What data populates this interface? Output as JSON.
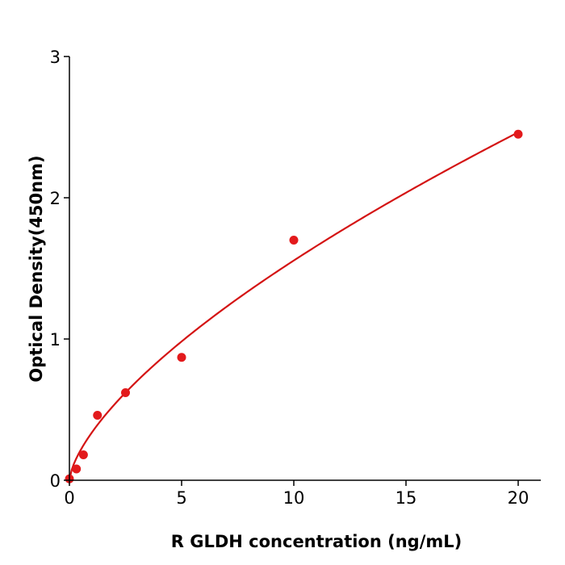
{
  "chart_data": {
    "type": "scatter",
    "title": "",
    "xlabel": "R  GLDH concentration (ng/mL)",
    "ylabel": "Optical Density(450nm)",
    "xlim": [
      0,
      21
    ],
    "ylim": [
      0,
      3
    ],
    "xticks": [
      0,
      5,
      10,
      15,
      20
    ],
    "yticks": [
      0,
      1,
      2,
      3
    ],
    "grid": false,
    "legend": "none",
    "color": "#e31a1c",
    "line_color": "#d41414",
    "series": [
      {
        "x": [
          0,
          0.3125,
          0.625,
          1.25,
          2.5,
          5,
          10,
          20
        ],
        "y": [
          0.01,
          0.08,
          0.18,
          0.46,
          0.62,
          0.87,
          1.7,
          2.45
        ]
      }
    ],
    "fit_curve": {
      "type": "power",
      "a": 0.338,
      "b": 0.663
    }
  }
}
